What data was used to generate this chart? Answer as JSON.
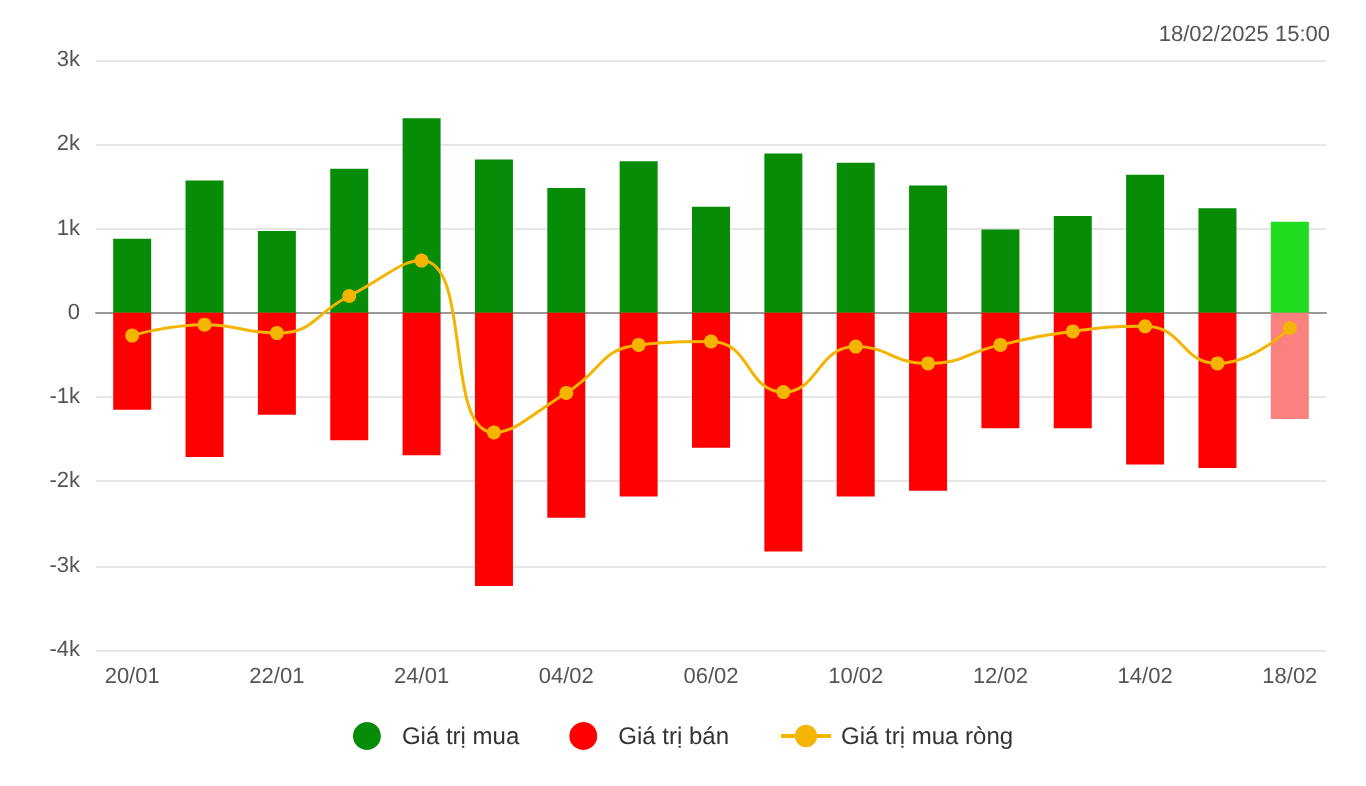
{
  "chart_data": {
    "type": "bar",
    "categories": [
      "20/01",
      null,
      "22/01",
      null,
      "24/01",
      null,
      "04/02",
      null,
      "06/02",
      null,
      "10/02",
      null,
      "12/02",
      null,
      "14/02",
      null,
      "18/02"
    ],
    "series": [
      {
        "name": "Giá trị mua",
        "color": "#068c06",
        "colors": [
          "#068c06",
          "#068c06",
          "#068c06",
          "#068c06",
          "#068c06",
          "#068c06",
          "#068c06",
          "#068c06",
          "#068c06",
          "#068c06",
          "#068c06",
          "#068c06",
          "#068c06",
          "#068c06",
          "#068c06",
          "#068c06",
          "#1fdc1f"
        ],
        "values": [
          0.88,
          1.57,
          0.97,
          1.71,
          2.31,
          1.82,
          1.48,
          1.8,
          1.26,
          1.89,
          1.78,
          1.51,
          0.99,
          1.15,
          1.64,
          1.24,
          1.08
        ]
      },
      {
        "name": "Giá trị bán",
        "color": "#ff0000",
        "colors": [
          "#ff0000",
          "#ff0000",
          "#ff0000",
          "#ff0000",
          "#ff0000",
          "#ff0000",
          "#ff0000",
          "#ff0000",
          "#ff0000",
          "#ff0000",
          "#ff0000",
          "#ff0000",
          "#ff0000",
          "#ff0000",
          "#ff0000",
          "#ff0000",
          "#fb8080"
        ],
        "values": [
          -1.15,
          -1.71,
          -1.21,
          -1.51,
          -1.69,
          -3.24,
          -2.43,
          -2.18,
          -1.6,
          -2.83,
          -2.18,
          -2.11,
          -1.37,
          -1.37,
          -1.8,
          -1.84,
          -1.26
        ]
      },
      {
        "name": "Giá trị mua ròng",
        "type": "line",
        "color": "#f4b400",
        "values": [
          -0.27,
          -0.14,
          -0.24,
          0.2,
          0.62,
          -1.42,
          -0.95,
          -0.38,
          -0.34,
          -0.94,
          -0.4,
          -0.6,
          -0.38,
          -0.22,
          -0.16,
          -0.6,
          -0.18
        ]
      }
    ],
    "ylim": [
      -4,
      3
    ],
    "yticks": [
      {
        "value": -4,
        "label": "-4k"
      },
      {
        "value": -3,
        "label": "-3k"
      },
      {
        "value": -2,
        "label": "-2k"
      },
      {
        "value": -1,
        "label": "-1k"
      },
      0,
      {
        "value": 1,
        "label": "1k"
      },
      {
        "value": 2,
        "label": "2k"
      },
      {
        "value": 3,
        "label": "3k"
      }
    ],
    "stacked": true,
    "grid": "y",
    "legend": "bottom",
    "marker": "circle",
    "annotations": [
      "18/02/2025 15:00"
    ]
  }
}
